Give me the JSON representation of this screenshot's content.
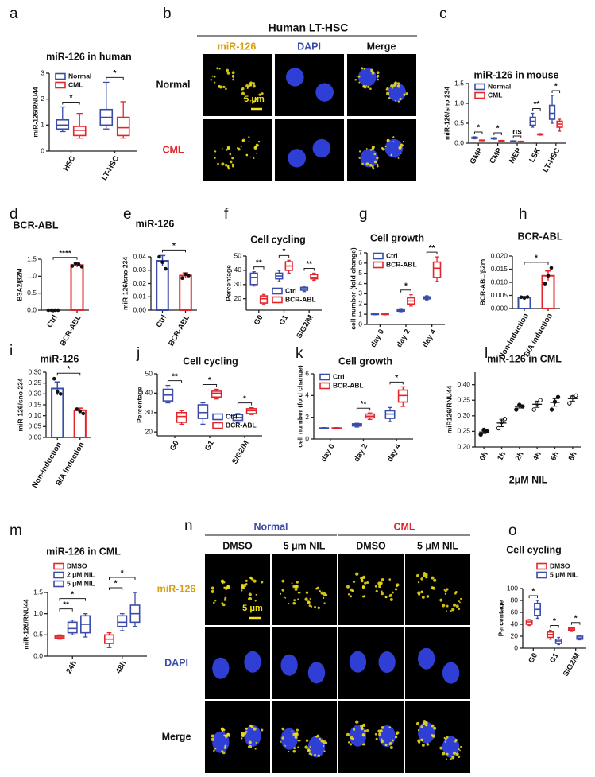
{
  "chart_data": [
    {
      "panel": "a",
      "type": "box",
      "title": "miR-126 in human",
      "y_label": "miR-126/RNU44",
      "categories": [
        "HSC",
        "LT-HSC"
      ],
      "series": [
        {
          "name": "Normal",
          "color": "#3a4ca8",
          "values": [
            {
              "min": 0.75,
              "q1": 0.85,
              "median": 1.0,
              "q3": 1.2,
              "max": 1.7
            },
            {
              "min": 0.85,
              "q1": 1.0,
              "median": 1.3,
              "q3": 1.6,
              "max": 2.65
            }
          ]
        },
        {
          "name": "CML",
          "color": "#e3262b",
          "values": [
            {
              "min": 0.5,
              "q1": 0.6,
              "median": 0.8,
              "q3": 0.95,
              "max": 1.45
            },
            {
              "min": 0.5,
              "q1": 0.6,
              "median": 0.9,
              "q3": 1.3,
              "max": 1.9
            }
          ]
        }
      ],
      "ylim": [
        0,
        3
      ],
      "yticks": [
        0,
        1,
        2,
        3
      ],
      "legend": "top-left",
      "significance": [
        "*",
        "*"
      ]
    },
    {
      "panel": "c",
      "type": "box",
      "title": "miR-126 in mouse",
      "y_label": "miR-126/sno 234",
      "categories": [
        "GMP",
        "CMP",
        "MEP",
        "LSK",
        "LT-HSC"
      ],
      "series": [
        {
          "name": "Normal",
          "color": "#3a4ca8",
          "values": [
            {
              "min": 0.11,
              "q1": 0.12,
              "median": 0.13,
              "q3": 0.15,
              "max": 0.16
            },
            {
              "min": 0.1,
              "q1": 0.11,
              "median": 0.12,
              "q3": 0.13,
              "max": 0.14
            },
            {
              "min": 0.04,
              "q1": 0.045,
              "median": 0.05,
              "q3": 0.055,
              "max": 0.06
            },
            {
              "min": 0.4,
              "q1": 0.45,
              "median": 0.55,
              "q3": 0.65,
              "max": 0.75
            },
            {
              "min": 0.5,
              "q1": 0.6,
              "median": 0.75,
              "q3": 0.95,
              "max": 1.2
            }
          ]
        },
        {
          "name": "CML",
          "color": "#e3262b",
          "values": [
            {
              "min": 0.06,
              "q1": 0.065,
              "median": 0.07,
              "q3": 0.075,
              "max": 0.08
            },
            {
              "min": 0.05,
              "q1": 0.055,
              "median": 0.06,
              "q3": 0.065,
              "max": 0.07
            },
            {
              "min": 0.03,
              "q1": 0.035,
              "median": 0.04,
              "q3": 0.045,
              "max": 0.05
            },
            {
              "min": 0.2,
              "q1": 0.21,
              "median": 0.22,
              "q3": 0.23,
              "max": 0.24
            },
            {
              "min": 0.3,
              "q1": 0.4,
              "median": 0.48,
              "q3": 0.55,
              "max": 0.6
            }
          ]
        }
      ],
      "ylim": [
        0,
        1.5
      ],
      "yticks": [
        {
          "value": 0,
          "label": "0.0"
        },
        0.5,
        {
          "value": 1,
          "label": "1.0"
        },
        1.5
      ],
      "legend": "top-left",
      "significance": [
        "*",
        "*",
        "ns",
        "**",
        "*"
      ]
    },
    {
      "panel": "d",
      "type": "bar",
      "title": "BCR-ABL",
      "y_label": "B3A2/β2M",
      "categories": [
        "Ctrl",
        "BCR-ABL"
      ],
      "colors": [
        "#3a4ca8",
        "#e3262b"
      ],
      "values": [
        0,
        1.33
      ],
      "errors": [
        0,
        0.06
      ],
      "points": [
        [
          0,
          0,
          0,
          0
        ],
        [
          1.3,
          1.38,
          1.35,
          1.28
        ]
      ],
      "ylim": [
        0,
        1.5
      ],
      "yticks": [
        {
          "value": 0,
          "label": "0.0"
        },
        0.5,
        {
          "value": 1,
          "label": "1.0"
        },
        1.5
      ],
      "significance": "****"
    },
    {
      "panel": "e",
      "type": "bar",
      "title": "miR-126",
      "y_label": "miR-126/sno 234",
      "categories": [
        "Ctrl",
        "BCR-ABL"
      ],
      "colors": [
        "#3a4ca8",
        "#e3262b"
      ],
      "values": [
        0.037,
        0.026
      ],
      "errors": [
        0.004,
        0.002
      ],
      "points": [
        [
          0.04,
          0.036,
          0.031
        ],
        [
          0.024,
          0.027,
          0.026
        ]
      ],
      "ylim": [
        0,
        0.04
      ],
      "yticks": [
        {
          "value": 0,
          "label": "0.00"
        },
        0.01,
        0.02,
        0.03,
        0.04
      ],
      "significance": "*"
    },
    {
      "panel": "f",
      "type": "box",
      "title": "Cell cycling",
      "y_label": "Percentage",
      "categories": [
        "G0",
        "G1",
        "S/G2/M"
      ],
      "series": [
        {
          "name": "Ctrl",
          "color": "#3a4ca8",
          "values": [
            {
              "min": 29,
              "q1": 30,
              "median": 35,
              "q3": 38,
              "max": 39
            },
            {
              "min": 32,
              "q1": 34,
              "median": 36,
              "q3": 38,
              "max": 40
            },
            {
              "min": 25,
              "q1": 26,
              "median": 27,
              "q3": 28,
              "max": 29
            }
          ]
        },
        {
          "name": "BCR-ABL",
          "color": "#e3262b",
          "values": [
            {
              "min": 16,
              "q1": 17,
              "median": 20,
              "q3": 22,
              "max": 23
            },
            {
              "min": 38,
              "q1": 40,
              "median": 43,
              "q3": 46,
              "max": 47
            },
            {
              "min": 33,
              "q1": 34,
              "median": 35,
              "q3": 37,
              "max": 38
            }
          ]
        }
      ],
      "ylim": [
        12,
        50
      ],
      "yticks": [
        20,
        30,
        40,
        50
      ],
      "legend": "bottom-right",
      "significance": [
        "**",
        "*",
        "**"
      ]
    },
    {
      "panel": "g",
      "type": "box",
      "title": "Cell growth",
      "y_label": "cell number (fold change)",
      "categories": [
        "day 0",
        "day 2",
        "day 4"
      ],
      "series": [
        {
          "name": "Ctrl",
          "color": "#3a4ca8",
          "values": [
            {
              "min": 0.95,
              "q1": 0.98,
              "median": 1,
              "q3": 1.02,
              "max": 1.05
            },
            {
              "min": 1.25,
              "q1": 1.3,
              "median": 1.4,
              "q3": 1.5,
              "max": 1.55
            },
            {
              "min": 2.4,
              "q1": 2.5,
              "median": 2.6,
              "q3": 2.7,
              "max": 2.8
            }
          ]
        },
        {
          "name": "BCR-ABL",
          "color": "#e3262b",
          "values": [
            {
              "min": 0.95,
              "q1": 0.98,
              "median": 1,
              "q3": 1.02,
              "max": 1.05
            },
            {
              "min": 1.8,
              "q1": 2,
              "median": 2.3,
              "q3": 2.6,
              "max": 2.9
            },
            {
              "min": 4.2,
              "q1": 4.6,
              "median": 5.5,
              "q3": 6.1,
              "max": 6.6
            }
          ]
        }
      ],
      "ylim": [
        0,
        7
      ],
      "yticks": [
        0,
        1,
        2,
        3,
        4,
        5,
        6,
        7
      ],
      "legend": "top-left",
      "significance": [
        null,
        "*",
        "**"
      ]
    },
    {
      "panel": "h",
      "type": "bar",
      "title": "BCR-ABL",
      "y_label": "BCR-ABL/β2m",
      "categories": [
        "Non-induction",
        "B/A induction"
      ],
      "colors": [
        "#3a4ca8",
        "#e3262b"
      ],
      "values": [
        0.0042,
        0.0125
      ],
      "errors": [
        0.0004,
        0.0018
      ],
      "points": [
        [
          0.0043,
          0.004,
          0.0044
        ],
        [
          0.0095,
          0.0125,
          0.0155
        ]
      ],
      "ylim": [
        0,
        0.02
      ],
      "yticks": [
        {
          "value": 0,
          "label": "0.000"
        },
        0.005,
        {
          "value": 0.01,
          "label": "0.010"
        },
        0.015,
        {
          "value": 0.02,
          "label": "0.020"
        }
      ],
      "significance": "*"
    },
    {
      "panel": "i",
      "type": "bar",
      "title": "miR-126",
      "y_label": "miR-126/sno 234",
      "categories": [
        "Non-induction",
        "B/A induction"
      ],
      "colors": [
        "#3a4ca8",
        "#e3262b"
      ],
      "values": [
        0.225,
        0.125
      ],
      "errors": [
        0.03,
        0.01
      ],
      "points": [
        [
          0.27,
          0.21,
          0.2
        ],
        [
          0.13,
          0.12,
          0.11
        ]
      ],
      "ylim": [
        0,
        0.3
      ],
      "yticks": [
        {
          "value": 0,
          "label": "0.00"
        },
        0.05,
        {
          "value": 0.1,
          "label": "0.10"
        },
        0.15,
        {
          "value": 0.2,
          "label": "0.20"
        },
        0.25,
        {
          "value": 0.3,
          "label": "0.30"
        }
      ],
      "significance": "*"
    },
    {
      "panel": "j",
      "type": "box",
      "title": "Cell cycling",
      "y_label": "Percentage",
      "categories": [
        "G0",
        "G1",
        "S/G2/M"
      ],
      "series": [
        {
          "name": "Ctrl",
          "color": "#3a4ca8",
          "values": [
            {
              "min": 35,
              "q1": 36,
              "median": 39,
              "q3": 42,
              "max": 44
            },
            {
              "min": 24,
              "q1": 27,
              "median": 30,
              "q3": 34,
              "max": 35
            },
            {
              "min": 25,
              "q1": 26,
              "median": 27.5,
              "q3": 29,
              "max": 29.5
            }
          ]
        },
        {
          "name": "BCR-ABL",
          "color": "#e3262b",
          "values": [
            {
              "min": 24,
              "q1": 25,
              "median": 28,
              "q3": 30,
              "max": 31
            },
            {
              "min": 37,
              "q1": 38,
              "median": 40,
              "q3": 41,
              "max": 42
            },
            {
              "min": 29,
              "q1": 29.5,
              "median": 31,
              "q3": 32,
              "max": 32.5
            }
          ]
        }
      ],
      "ylim": [
        18,
        50
      ],
      "yticks": [
        20,
        30,
        40,
        50
      ],
      "legend": "bottom-right",
      "significance": [
        "**",
        "*",
        "*"
      ]
    },
    {
      "panel": "k",
      "type": "box",
      "title": "Cell growth",
      "y_label": "cell number (fold change)",
      "categories": [
        "day 0",
        "day 2",
        "day 4"
      ],
      "series": [
        {
          "name": "Ctrl",
          "color": "#3a4ca8",
          "values": [
            {
              "min": 0.95,
              "q1": 0.98,
              "median": 1,
              "q3": 1.02,
              "max": 1.05
            },
            {
              "min": 1.1,
              "q1": 1.2,
              "median": 1.3,
              "q3": 1.4,
              "max": 1.45
            },
            {
              "min": 1.6,
              "q1": 1.9,
              "median": 2.3,
              "q3": 2.6,
              "max": 2.9
            }
          ]
        },
        {
          "name": "BCR-ABL",
          "color": "#e3262b",
          "values": [
            {
              "min": 0.95,
              "q1": 0.98,
              "median": 1,
              "q3": 1.02,
              "max": 1.05
            },
            {
              "min": 1.8,
              "q1": 1.95,
              "median": 2.1,
              "q3": 2.3,
              "max": 2.4
            },
            {
              "min": 3,
              "q1": 3.4,
              "median": 4,
              "q3": 4.5,
              "max": 4.8
            }
          ]
        }
      ],
      "ylim": [
        0,
        6
      ],
      "yticks": [
        0,
        2,
        4,
        6
      ],
      "legend": "top-left",
      "significance": [
        null,
        "**",
        "*"
      ]
    },
    {
      "panel": "l",
      "type": "dot",
      "title": "miR-126 in CML",
      "y_label": "miR126/RNU44",
      "x_label": "2μM NIL",
      "categories": [
        "0h",
        "1h",
        "2h",
        "4h",
        "6h",
        "8h"
      ],
      "color": "#111111",
      "values": [
        0.248,
        0.277,
        0.33,
        0.337,
        0.343,
        0.355
      ],
      "errors": [
        0.005,
        0.012,
        0.005,
        0.01,
        0.012,
        0.008
      ],
      "points": [
        [
          0.24,
          0.255,
          0.25
        ],
        [
          0.26,
          0.28,
          0.29
        ],
        [
          0.32,
          0.335,
          0.33
        ],
        [
          0.32,
          0.34,
          0.35
        ],
        [
          0.32,
          0.345,
          0.36
        ],
        [
          0.34,
          0.36,
          0.365
        ]
      ],
      "ylim": [
        0.2,
        0.44
      ],
      "yticks": [
        {
          "value": 0.2,
          "label": "0.20"
        },
        0.25,
        {
          "value": 0.3,
          "label": "0.30"
        },
        0.35,
        {
          "value": 0.4,
          "label": "0.40"
        }
      ]
    },
    {
      "panel": "m",
      "type": "box",
      "title": "miR-126 in CML",
      "y_label": "miR-126/RNU44",
      "categories": [
        "24h",
        "48h"
      ],
      "series": [
        {
          "name": "DMSO",
          "color": "#e3262b",
          "values": [
            {
              "min": 0.4,
              "q1": 0.42,
              "median": 0.45,
              "q3": 0.48,
              "max": 0.5
            },
            {
              "min": 0.2,
              "q1": 0.3,
              "median": 0.4,
              "q3": 0.5,
              "max": 0.55
            }
          ]
        },
        {
          "name": "2 μM NIL",
          "color": "#3a4ca8",
          "values": [
            {
              "min": 0.5,
              "q1": 0.55,
              "median": 0.65,
              "q3": 0.8,
              "max": 0.85
            },
            {
              "min": 0.6,
              "q1": 0.7,
              "median": 0.8,
              "q3": 0.95,
              "max": 1.0
            }
          ]
        },
        {
          "name": "5 μM NIL",
          "color": "#3a4ca8",
          "values": [
            {
              "min": 0.45,
              "q1": 0.55,
              "median": 0.75,
              "q3": 0.95,
              "max": 1.0
            },
            {
              "min": 0.7,
              "q1": 0.8,
              "median": 1.0,
              "q3": 1.2,
              "max": 1.5
            }
          ]
        }
      ],
      "ylim": [
        0,
        1.5
      ],
      "yticks": [
        {
          "value": 0,
          "label": "0.0"
        },
        0.5,
        {
          "value": 1,
          "label": "1.0"
        },
        1.5
      ],
      "legend": "top-left",
      "significance": [
        [
          "**",
          "*"
        ],
        [
          "*",
          "*"
        ]
      ]
    },
    {
      "panel": "o",
      "type": "box",
      "title": "Cell cycling",
      "y_label": "Percentage",
      "categories": [
        "G0",
        "G1",
        "S/G2/M"
      ],
      "series": [
        {
          "name": "DMSO",
          "color": "#e3262b",
          "values": [
            {
              "min": 38,
              "q1": 40,
              "median": 44,
              "q3": 47,
              "max": 48
            },
            {
              "min": 15,
              "q1": 18,
              "median": 23,
              "q3": 27,
              "max": 30
            },
            {
              "min": 28,
              "q1": 30,
              "median": 32,
              "q3": 34,
              "max": 35
            }
          ]
        },
        {
          "name": "5 μM NIL",
          "color": "#3a4ca8",
          "values": [
            {
              "min": 50,
              "q1": 55,
              "median": 65,
              "q3": 75,
              "max": 80
            },
            {
              "min": 6,
              "q1": 8,
              "median": 12,
              "q3": 15,
              "max": 18
            },
            {
              "min": 14,
              "q1": 15,
              "median": 17,
              "q3": 20,
              "max": 21
            }
          ]
        }
      ],
      "ylim": [
        0,
        100
      ],
      "yticks": [
        0,
        20,
        40,
        60,
        80,
        100
      ],
      "legend": "top-right",
      "significance": [
        "*",
        "*",
        "*"
      ]
    }
  ],
  "micrographs": [
    {
      "panel": "b",
      "title": "Human LT-HSC",
      "columns": [
        {
          "label": "miR-126",
          "color": "#d4a017"
        },
        {
          "label": "DAPI",
          "color": "#3a4ca8"
        },
        {
          "label": "Merge",
          "color": "#111111"
        }
      ],
      "rows": [
        {
          "label": "Normal",
          "color": "#111111"
        },
        {
          "label": "CML",
          "color": "#e3262b"
        }
      ],
      "scale_bar": "5 μm"
    },
    {
      "panel": "n",
      "groups": [
        {
          "label": "Normal",
          "color": "#3a4ca8"
        },
        {
          "label": "CML",
          "color": "#e3262b"
        }
      ],
      "columns": [
        "DMSO",
        "5 μm NIL",
        "DMSO",
        "5 μM NIL"
      ],
      "rows": [
        {
          "label": "miR-126",
          "color": "#d4a017"
        },
        {
          "label": "DAPI",
          "color": "#3a4ca8"
        },
        {
          "label": "Merge",
          "color": "#111111"
        }
      ],
      "scale_bar": "5 μm"
    }
  ]
}
